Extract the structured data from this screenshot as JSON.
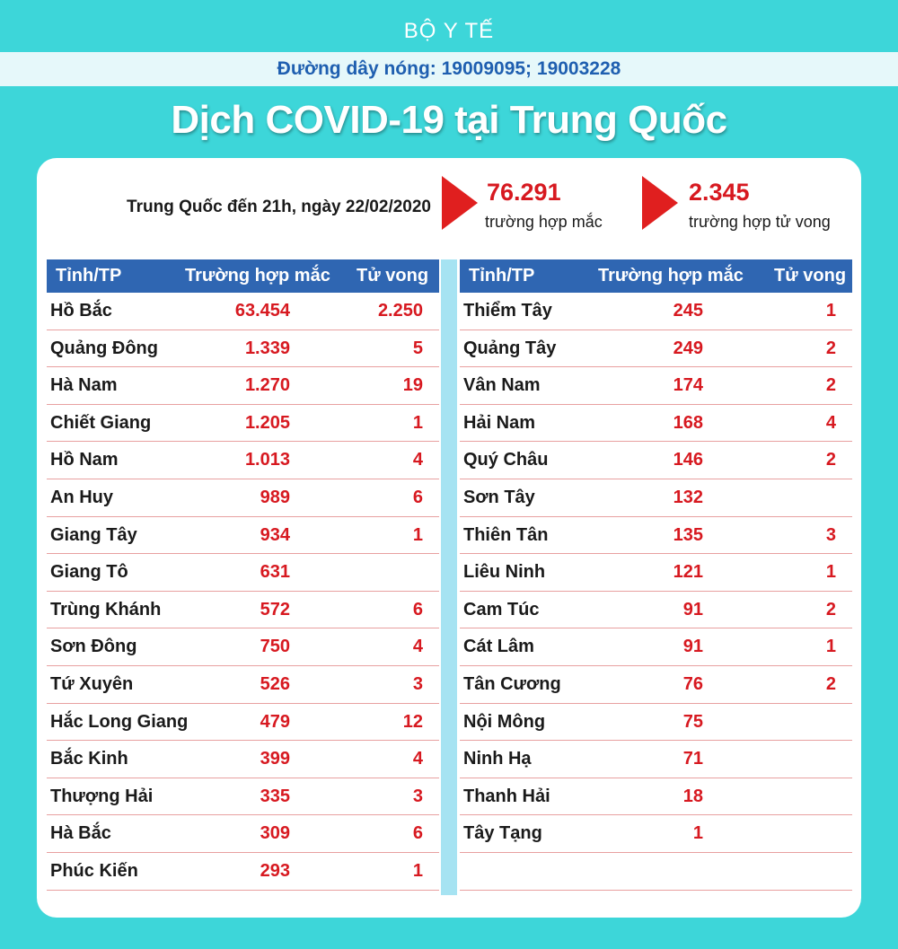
{
  "header": {
    "ministry": "BỘ Y TẾ",
    "hotline": "Đường dây nóng: 19009095; 19003228",
    "title": "Dịch COVID-19 tại Trung Quốc"
  },
  "summary": {
    "label": "Trung Quốc  đến 21h, ngày 22/02/2020",
    "cases_value": "76.291",
    "cases_label": "trường hợp  mắc",
    "deaths_value": "2.345",
    "deaths_label": "trường hợp  tử vong"
  },
  "table": {
    "headers": [
      "Tỉnh/TP",
      "Trường hợp mắc",
      "Tử vong"
    ],
    "left": [
      [
        "Hồ Bắc",
        "63.454",
        "2.250"
      ],
      [
        "Quảng Đông",
        "1.339",
        "5"
      ],
      [
        "Hà Nam",
        "1.270",
        "19"
      ],
      [
        "Chiết Giang",
        "1.205",
        "1"
      ],
      [
        "Hồ Nam",
        "1.013",
        "4"
      ],
      [
        "An Huy",
        "989",
        "6"
      ],
      [
        "Giang Tây",
        "934",
        "1"
      ],
      [
        "Giang Tô",
        "631",
        ""
      ],
      [
        "Trùng Khánh",
        "572",
        "6"
      ],
      [
        "Sơn Đông",
        "750",
        "4"
      ],
      [
        "Tứ Xuyên",
        "526",
        "3"
      ],
      [
        "Hắc Long Giang",
        "479",
        "12"
      ],
      [
        "Bắc Kinh",
        "399",
        "4"
      ],
      [
        "Thượng Hải",
        "335",
        "3"
      ],
      [
        "Hà Bắc",
        "309",
        "6"
      ],
      [
        "Phúc Kiến",
        "293",
        "1"
      ]
    ],
    "right": [
      [
        "Thiểm Tây",
        "245",
        "1"
      ],
      [
        "Quảng Tây",
        "249",
        "2"
      ],
      [
        "Vân Nam",
        "174",
        "2"
      ],
      [
        "Hải Nam",
        "168",
        "4"
      ],
      [
        "Quý Châu",
        "146",
        "2"
      ],
      [
        "Sơn Tây",
        "132",
        ""
      ],
      [
        "Thiên Tân",
        "135",
        "3"
      ],
      [
        "Liêu Ninh",
        "121",
        "1"
      ],
      [
        "Cam Túc",
        "91",
        "2"
      ],
      [
        "Cát Lâm",
        "91",
        "1"
      ],
      [
        "Tân Cương",
        "76",
        "2"
      ],
      [
        "Nội Mông",
        "75",
        ""
      ],
      [
        "Ninh Hạ",
        "71",
        ""
      ],
      [
        "Thanh Hải",
        "18",
        ""
      ],
      [
        "Tây Tạng",
        "1",
        ""
      ],
      [
        "",
        "",
        ""
      ]
    ]
  },
  "colors": {
    "background": "#3dd6d9",
    "header_blue": "#2f66b2",
    "accent_red": "#d71920",
    "hotline_blue": "#1f5fb0"
  }
}
